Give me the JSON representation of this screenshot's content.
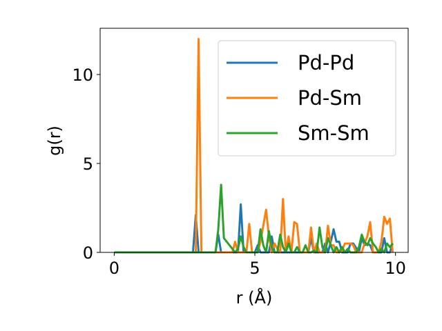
{
  "chart_data": {
    "type": "line",
    "title": "",
    "xlabel": "r (Å)",
    "ylabel": "g(r)",
    "xlim": [
      -0.5,
      10.45
    ],
    "ylim": [
      0,
      12.6
    ],
    "xticks": [
      0,
      5,
      10
    ],
    "yticks": [
      0,
      5,
      10
    ],
    "grid": false,
    "legend": {
      "placement": "upper-right",
      "entries": [
        "Pd-Pd",
        "Pd-Sm",
        "Sm-Sm"
      ]
    },
    "series": [
      {
        "name": "Pd-Pd",
        "color": "#1f77b4",
        "x": [
          0,
          2.8,
          2.9,
          3.0,
          3.1,
          3.6,
          3.7,
          3.8,
          3.9,
          4.3,
          4.4,
          4.5,
          4.6,
          5.0,
          5.1,
          5.2,
          5.5,
          5.6,
          5.7,
          6.9,
          7.0,
          7.1,
          7.2,
          7.4,
          7.5,
          7.6,
          7.7,
          7.8,
          7.9,
          8.0,
          8.1,
          8.3,
          8.4,
          8.5,
          8.7,
          8.8,
          8.9,
          9.0,
          9.1,
          9.2,
          9.3,
          9.4,
          9.5,
          9.6,
          9.7,
          9.8,
          9.9
        ],
        "y": [
          0,
          0,
          2.1,
          0,
          0,
          0,
          1.0,
          0,
          0,
          0,
          0,
          2.7,
          0,
          0,
          0.4,
          0,
          0,
          0.9,
          0,
          0,
          0.8,
          0,
          0,
          0,
          0.5,
          0,
          0.6,
          1.3,
          0.6,
          0.6,
          0,
          0,
          0.5,
          0.5,
          0,
          0.8,
          0.4,
          0.5,
          0.4,
          0,
          0,
          0,
          0,
          0.8,
          0,
          0,
          0.5
        ]
      },
      {
        "name": "Pd-Sm",
        "color": "#ff7f0e",
        "x": [
          0,
          2.9,
          3.0,
          3.1,
          4.2,
          4.3,
          4.4,
          4.5,
          4.7,
          4.8,
          4.9,
          5.1,
          5.2,
          5.3,
          5.4,
          5.5,
          5.6,
          5.7,
          5.8,
          5.9,
          6.0,
          6.1,
          6.2,
          6.3,
          6.4,
          6.5,
          6.6,
          6.7,
          6.8,
          6.9,
          7.0,
          7.1,
          7.2,
          7.3,
          7.4,
          7.5,
          7.6,
          7.7,
          7.8,
          7.9,
          8.0,
          8.1,
          8.2,
          8.3,
          8.4,
          8.5,
          8.6,
          8.7,
          8.8,
          8.9,
          9.0,
          9.1,
          9.2,
          9.3,
          9.4,
          9.5,
          9.6,
          9.7,
          9.8,
          9.9
        ],
        "y": [
          0,
          0,
          12.0,
          0,
          0,
          0.6,
          0,
          0,
          0,
          1.6,
          0,
          0,
          0.6,
          1.5,
          2.4,
          0.9,
          0,
          0.5,
          0.2,
          0,
          3.0,
          0,
          0.9,
          0,
          1.7,
          1.6,
          0,
          0,
          0,
          0,
          1.4,
          0,
          0.5,
          0,
          0,
          0,
          1.5,
          0.4,
          0.4,
          0,
          0,
          0.1,
          0.5,
          0.5,
          0.5,
          0.4,
          0,
          0,
          0,
          0.5,
          0.9,
          1.7,
          0,
          0,
          0,
          0.6,
          2.0,
          1.6,
          1.9,
          0
        ]
      },
      {
        "name": "Sm-Sm",
        "color": "#2ca02c",
        "x": [
          0,
          3.5,
          3.6,
          3.7,
          3.8,
          3.9,
          4.3,
          4.4,
          4.5,
          4.6,
          4.7,
          5.1,
          5.2,
          5.3,
          5.4,
          5.5,
          5.6,
          5.7,
          5.8,
          5.9,
          6.0,
          6.1,
          6.2,
          6.3,
          6.4,
          6.5,
          6.6,
          6.7,
          6.8,
          6.9,
          7.0,
          7.1,
          7.2,
          7.3,
          7.4,
          7.5,
          7.6,
          7.7,
          7.8,
          7.9,
          8.0,
          8.1,
          8.2,
          8.3,
          8.4,
          8.5,
          8.6,
          8.7,
          8.8,
          8.9,
          9.0,
          9.1,
          9.2,
          9.3,
          9.4,
          9.5,
          9.6,
          9.7,
          9.8,
          9.9
        ],
        "y": [
          0,
          0,
          0,
          1.3,
          3.8,
          0.8,
          0,
          0.2,
          0.9,
          0.3,
          0,
          0,
          1.3,
          0.4,
          0,
          1.2,
          0.3,
          0,
          0,
          1.0,
          0.3,
          0,
          0.5,
          0,
          0,
          0.3,
          0,
          0,
          0.4,
          0,
          0,
          0.1,
          0,
          1.4,
          0.3,
          0,
          0.8,
          0.4,
          0,
          0.3,
          0,
          0.3,
          0,
          0.2,
          0,
          0,
          0,
          0.3,
          1.0,
          0.6,
          0.4,
          0.8,
          0.5,
          0.3,
          0,
          0.2,
          0,
          0.5,
          0.3,
          0.5
        ]
      }
    ]
  }
}
